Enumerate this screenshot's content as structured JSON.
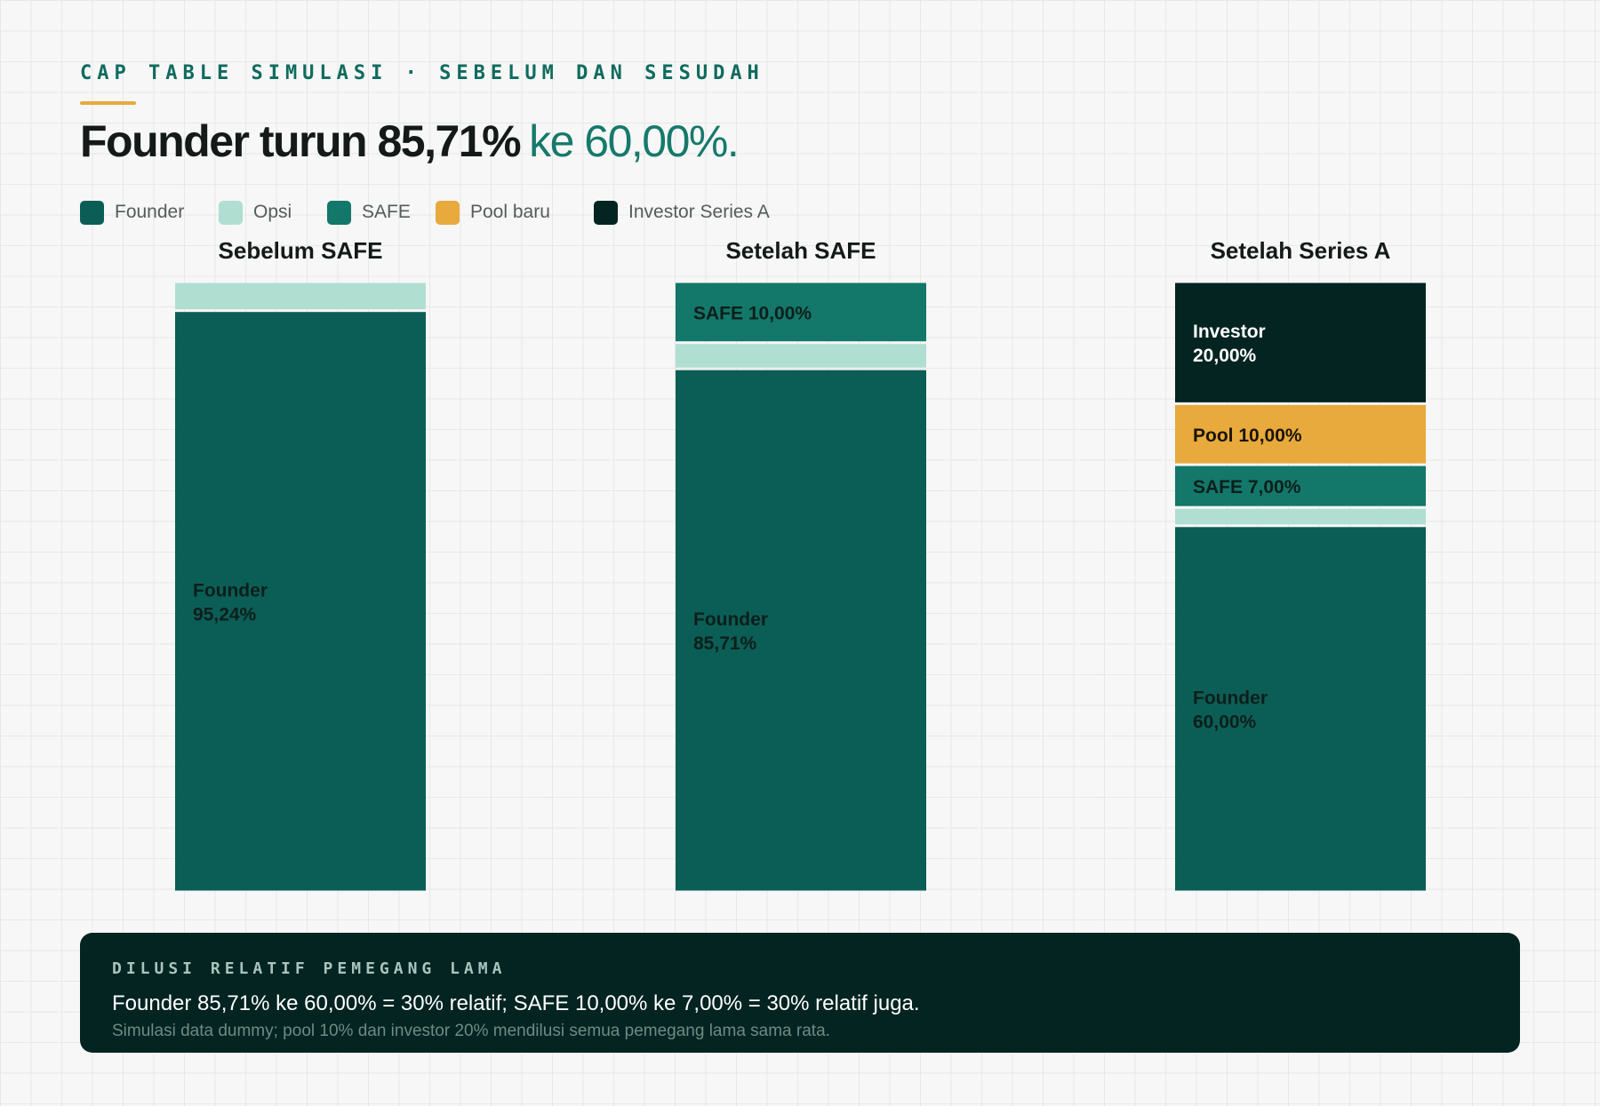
{
  "header": {
    "eyebrow": "CAP TABLE SIMULASI · SEBELUM DAN SESUDAH",
    "headline_main": "Founder turun 85,71%",
    "headline_accent": "ke 60,00%."
  },
  "colors": {
    "founder": "#0b5e56",
    "opsi": "#b0dfd2",
    "safe": "#13776a",
    "pool": "#e8a93d",
    "investor": "#032421",
    "accent_rule": "#e8a93d",
    "headline_accent": "#16796b"
  },
  "legend": [
    {
      "key": "founder",
      "label": "Founder"
    },
    {
      "key": "opsi",
      "label": "Opsi"
    },
    {
      "key": "safe",
      "label": "SAFE"
    },
    {
      "key": "pool",
      "label": "Pool baru"
    },
    {
      "key": "investor",
      "label": "Investor Series A"
    }
  ],
  "chart_data": {
    "type": "bar",
    "stacked": true,
    "normalized_to": 100,
    "categories": [
      "Sebelum SAFE",
      "Setelah SAFE",
      "Setelah Series A"
    ],
    "series": [
      {
        "key": "founder",
        "name": "Founder",
        "values": [
          95.24,
          85.71,
          60.0
        ],
        "labels": [
          [
            "Founder",
            "95,24%"
          ],
          [
            "Founder",
            "85,71%"
          ],
          [
            "Founder",
            "60,00%"
          ]
        ]
      },
      {
        "key": "opsi",
        "name": "Opsi",
        "values": [
          4.76,
          4.29,
          3.0
        ],
        "labels": [
          [],
          [],
          []
        ]
      },
      {
        "key": "safe",
        "name": "SAFE",
        "values": [
          0,
          10.0,
          7.0
        ],
        "labels": [
          [],
          [
            "SAFE 10,00%"
          ],
          [
            "SAFE 7,00%"
          ]
        ]
      },
      {
        "key": "pool",
        "name": "Pool baru",
        "values": [
          0,
          0,
          10.0
        ],
        "labels": [
          [],
          [],
          [
            "Pool 10,00%"
          ]
        ]
      },
      {
        "key": "investor",
        "name": "Investor Series A",
        "values": [
          0,
          0,
          20.0
        ],
        "labels": [
          [],
          [],
          [
            "Investor",
            "20,00%"
          ]
        ]
      }
    ],
    "ylim": [
      0,
      100
    ],
    "grid": false,
    "legend_position": "top-left"
  },
  "panel": {
    "title": "DILUSI RELATIF PEMEGANG LAMA",
    "body": "Founder 85,71% ke 60,00% = 30% relatif; SAFE 10,00% ke 7,00% = 30% relatif juga.",
    "note": "Simulasi data dummy; pool 10% dan investor 20% mendilusi semua pemegang lama sama rata."
  }
}
